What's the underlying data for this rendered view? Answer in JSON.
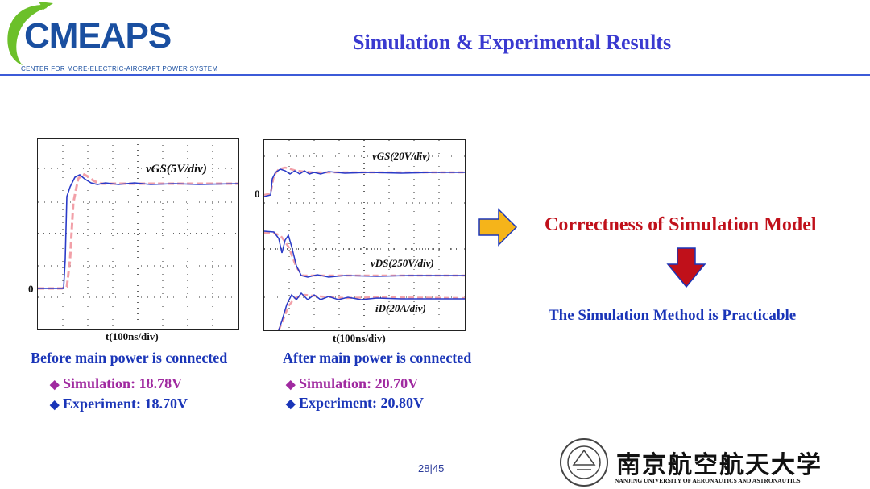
{
  "header": {
    "logo_text": "CMEAPS",
    "logo_subtitle": "CENTER FOR  MORE-ELECTRIC-AIRCRAFT POWER SYSTEM",
    "title": "Simulation & Experimental Results"
  },
  "left_scope": {
    "signal_label": "vGS(5V/div)",
    "zero_label": "0",
    "x_label": "t(100ns/div)",
    "caption": "Before main power is connected",
    "sim_text": "Simulation:  18.78V",
    "exp_text": "Experiment: 18.70V"
  },
  "right_scope": {
    "vgs_label": "vGS(20V/div)",
    "vds_label": "vDS(250V/div)",
    "id_label": "iD(20A/div)",
    "zero_label": "0",
    "x_label": "t(100ns/div)",
    "caption": "After main power is connected",
    "sim_text": "Simulation:  20.70V",
    "exp_text": "Experiment: 20.80V"
  },
  "conclusion": {
    "correctness": "Correctness of Simulation Model",
    "practicable": "The Simulation Method is Practicable"
  },
  "footer": {
    "page_number": "28|45",
    "university_cn": "南京航空航天大学",
    "university_en": "NANJING UNIVERSITY OF AERONAUTICS AND ASTRONAUTICS"
  },
  "colors": {
    "title_blue": "#3a3ad0",
    "experiment_blue": "#1a35b8",
    "simulation_purple": "#a02aa0",
    "conclusion_red": "#c0101a",
    "arrow_yellow": "#f5b41a",
    "arrow_red": "#c0101a",
    "sim_trace": "#f2a0a8",
    "exp_trace": "#2a3ac8"
  }
}
